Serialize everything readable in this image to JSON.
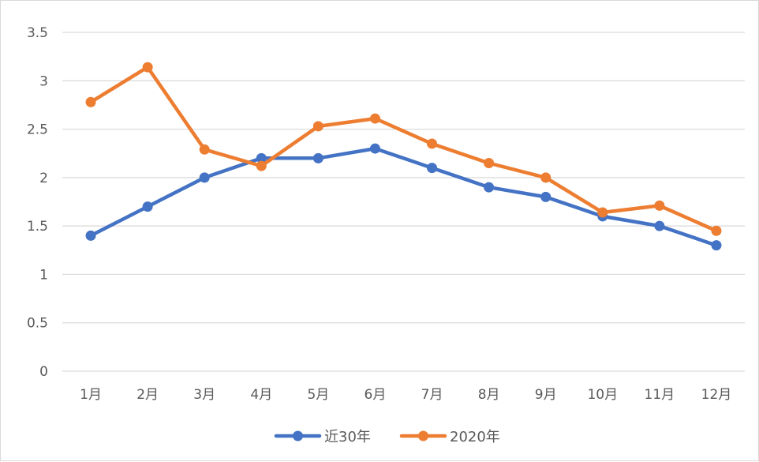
{
  "chart_data": {
    "type": "line",
    "categories": [
      "1月",
      "2月",
      "3月",
      "4月",
      "5月",
      "6月",
      "7月",
      "8月",
      "9月",
      "10月",
      "11月",
      "12月"
    ],
    "series": [
      {
        "name": "近30年",
        "color": "#4472c4",
        "values": [
          1.4,
          1.7,
          2.0,
          2.2,
          2.2,
          2.3,
          2.1,
          1.9,
          1.8,
          1.6,
          1.5,
          1.3
        ]
      },
      {
        "name": "2020年",
        "color": "#ed7d31",
        "values": [
          2.78,
          3.14,
          2.29,
          2.12,
          2.53,
          2.61,
          2.35,
          2.15,
          2.0,
          1.64,
          1.71,
          1.45
        ]
      }
    ],
    "ylim": [
      0,
      3.5
    ],
    "yticks": [
      "0",
      "0.5",
      "1",
      "1.5",
      "2",
      "2.5",
      "3",
      "3.5"
    ],
    "ytick_values": [
      0,
      0.5,
      1,
      1.5,
      2,
      2.5,
      3,
      3.5
    ],
    "grid": "horizontal",
    "legend_position": "bottom",
    "title": "",
    "xlabel": "",
    "ylabel": ""
  }
}
